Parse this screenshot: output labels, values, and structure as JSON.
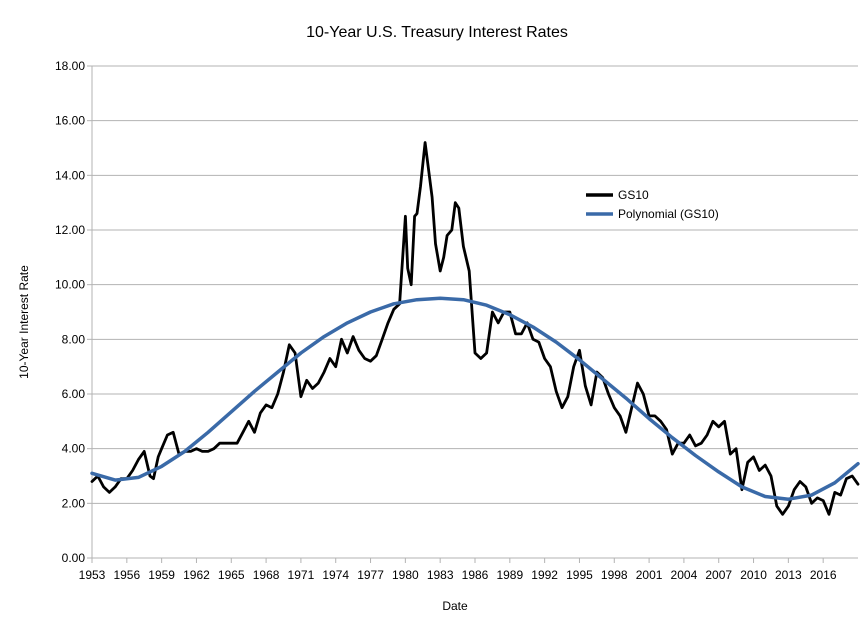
{
  "chart_data": {
    "type": "line",
    "title": "10-Year U.S. Treasury Interest Rates",
    "xlabel": "Date",
    "ylabel": "10-Year Interest Rate",
    "xlim": [
      1953,
      2019
    ],
    "ylim": [
      0,
      18
    ],
    "grid": true,
    "legend_position": "top-right",
    "x_ticks": [
      "1953",
      "1956",
      "1959",
      "1962",
      "1965",
      "1968",
      "1971",
      "1974",
      "1977",
      "1980",
      "1983",
      "1986",
      "1989",
      "1992",
      "1995",
      "1998",
      "2001",
      "2004",
      "2007",
      "2010",
      "2013",
      "2016"
    ],
    "y_ticks": [
      "0.00",
      "2.00",
      "4.00",
      "6.00",
      "8.00",
      "10.00",
      "12.00",
      "14.00",
      "16.00",
      "18.00"
    ],
    "series": [
      {
        "name": "GS10",
        "color": "#000000",
        "x": [
          1953.0,
          1953.5,
          1954.0,
          1954.5,
          1955.0,
          1955.5,
          1956.0,
          1956.5,
          1957.0,
          1957.5,
          1958.0,
          1958.3,
          1958.7,
          1959.0,
          1959.5,
          1960.0,
          1960.5,
          1961.0,
          1961.5,
          1962.0,
          1962.5,
          1963.0,
          1963.5,
          1964.0,
          1964.5,
          1965.0,
          1965.5,
          1966.0,
          1966.5,
          1967.0,
          1967.5,
          1968.0,
          1968.5,
          1969.0,
          1969.5,
          1970.0,
          1970.5,
          1971.0,
          1971.5,
          1972.0,
          1972.5,
          1973.0,
          1973.5,
          1974.0,
          1974.5,
          1975.0,
          1975.5,
          1976.0,
          1976.5,
          1977.0,
          1977.5,
          1978.0,
          1978.5,
          1979.0,
          1979.5,
          1980.0,
          1980.2,
          1980.5,
          1980.8,
          1981.0,
          1981.3,
          1981.7,
          1982.0,
          1982.3,
          1982.6,
          1983.0,
          1983.3,
          1983.6,
          1984.0,
          1984.3,
          1984.6,
          1985.0,
          1985.5,
          1986.0,
          1986.5,
          1987.0,
          1987.5,
          1988.0,
          1988.5,
          1989.0,
          1989.5,
          1990.0,
          1990.5,
          1991.0,
          1991.5,
          1992.0,
          1992.5,
          1993.0,
          1993.5,
          1994.0,
          1994.5,
          1995.0,
          1995.5,
          1996.0,
          1996.5,
          1997.0,
          1997.5,
          1998.0,
          1998.5,
          1999.0,
          1999.5,
          2000.0,
          2000.5,
          2001.0,
          2001.5,
          2002.0,
          2002.5,
          2003.0,
          2003.5,
          2004.0,
          2004.5,
          2005.0,
          2005.5,
          2006.0,
          2006.5,
          2007.0,
          2007.5,
          2008.0,
          2008.5,
          2009.0,
          2009.5,
          2010.0,
          2010.5,
          2011.0,
          2011.5,
          2012.0,
          2012.5,
          2013.0,
          2013.5,
          2014.0,
          2014.5,
          2015.0,
          2015.5,
          2016.0,
          2016.5,
          2017.0,
          2017.5,
          2018.0,
          2018.5,
          2019.0
        ],
        "y": [
          2.8,
          3.0,
          2.6,
          2.4,
          2.6,
          2.9,
          2.9,
          3.2,
          3.6,
          3.9,
          3.0,
          2.9,
          3.7,
          4.0,
          4.5,
          4.6,
          3.8,
          3.9,
          3.9,
          4.0,
          3.9,
          3.9,
          4.0,
          4.2,
          4.2,
          4.2,
          4.2,
          4.6,
          5.0,
          4.6,
          5.3,
          5.6,
          5.5,
          6.0,
          6.8,
          7.8,
          7.5,
          5.9,
          6.5,
          6.2,
          6.4,
          6.8,
          7.3,
          7.0,
          8.0,
          7.5,
          8.1,
          7.6,
          7.3,
          7.2,
          7.4,
          8.0,
          8.6,
          9.1,
          9.3,
          12.5,
          10.6,
          10.0,
          12.5,
          12.6,
          13.6,
          15.2,
          14.2,
          13.2,
          11.5,
          10.5,
          11.0,
          11.8,
          12.0,
          13.0,
          12.8,
          11.4,
          10.5,
          7.5,
          7.3,
          7.5,
          9.0,
          8.6,
          9.0,
          9.0,
          8.2,
          8.2,
          8.6,
          8.0,
          7.9,
          7.3,
          7.0,
          6.1,
          5.5,
          5.9,
          7.0,
          7.6,
          6.3,
          5.6,
          6.8,
          6.6,
          6.0,
          5.5,
          5.2,
          4.6,
          5.5,
          6.4,
          6.0,
          5.2,
          5.2,
          5.0,
          4.7,
          3.8,
          4.2,
          4.2,
          4.5,
          4.1,
          4.2,
          4.5,
          5.0,
          4.8,
          5.0,
          3.8,
          4.0,
          2.5,
          3.5,
          3.7,
          3.2,
          3.4,
          3.0,
          1.9,
          1.6,
          1.9,
          2.5,
          2.8,
          2.6,
          2.0,
          2.2,
          2.1,
          1.6,
          2.4,
          2.3,
          2.9,
          3.0,
          2.7
        ]
      },
      {
        "name": "Polynomial (GS10)",
        "color": "#3a6aa8",
        "x": [
          1953,
          1955,
          1957,
          1959,
          1961,
          1963,
          1965,
          1967,
          1969,
          1971,
          1973,
          1975,
          1977,
          1979,
          1981,
          1983,
          1985,
          1987,
          1989,
          1991,
          1993,
          1995,
          1997,
          1999,
          2001,
          2003,
          2005,
          2007,
          2009,
          2011,
          2013,
          2015,
          2017,
          2019
        ],
        "y": [
          3.1,
          2.85,
          2.95,
          3.35,
          3.9,
          4.6,
          5.35,
          6.1,
          6.8,
          7.5,
          8.1,
          8.6,
          9.0,
          9.3,
          9.45,
          9.5,
          9.45,
          9.25,
          8.9,
          8.45,
          7.9,
          7.25,
          6.55,
          5.85,
          5.1,
          4.4,
          3.75,
          3.15,
          2.6,
          2.25,
          2.15,
          2.3,
          2.75,
          3.45
        ]
      }
    ]
  }
}
